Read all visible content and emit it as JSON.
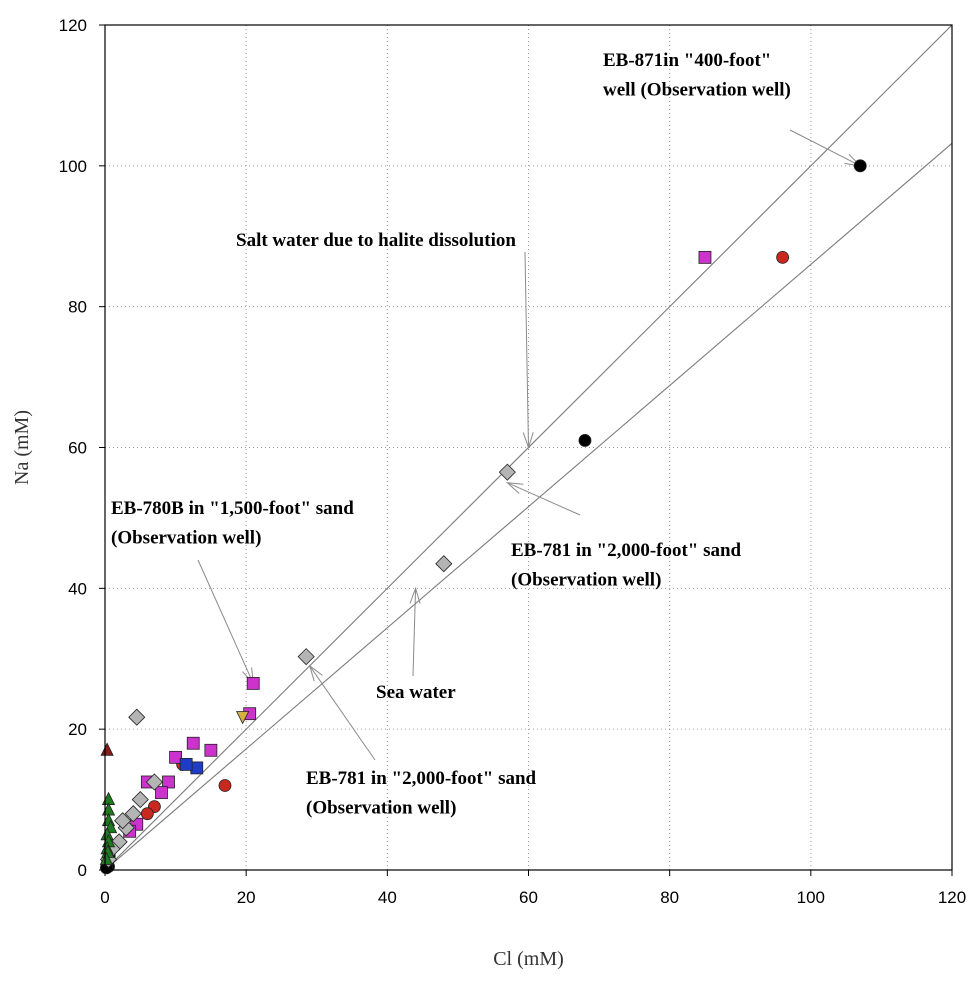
{
  "chart_data": {
    "type": "scatter",
    "title": "",
    "xlabel": "Cl (mM)",
    "ylabel": "Na (mM)",
    "xlim": [
      0,
      120
    ],
    "ylim": [
      0,
      120
    ],
    "xticks": [
      "0",
      "20",
      "40",
      "60",
      "80",
      "100",
      "120"
    ],
    "yticks": [
      "0",
      "20",
      "40",
      "60",
      "80",
      "100",
      "120"
    ],
    "grid": true,
    "legend": "none",
    "colors": {
      "black": "#000000",
      "red": "#c8281e",
      "magenta": "#cc33cc",
      "gray": "#b4b4b4",
      "blue": "#1e3cc8",
      "green": "#1e7a1e",
      "darkred": "#8b1a1a",
      "yellow": "#d4b040"
    },
    "reference_lines": [
      {
        "label": "Salt water due to halite dissolution",
        "slope": 1.0
      },
      {
        "label": "Sea water",
        "slope": 0.86
      }
    ],
    "annotations": [
      {
        "lines": [
          "EB-871in \"400-foot\"",
          "well (Observation well)"
        ],
        "arrow_to": [
          107,
          100
        ]
      },
      {
        "lines": [
          "Salt water due to halite dissolution"
        ],
        "arrow_to": [
          60,
          60
        ]
      },
      {
        "lines": [
          "EB-780B in \"1,500-foot\" sand",
          "(Observation well)"
        ],
        "arrow_to": [
          21,
          26.5
        ]
      },
      {
        "lines": [
          "EB-781 in \"2,000-foot\" sand",
          "(Observation well)"
        ],
        "arrow_to": [
          57,
          55
        ]
      },
      {
        "lines": [
          "Sea water"
        ],
        "arrow_to": [
          44,
          40
        ]
      },
      {
        "lines": [
          "EB-781 in \"2,000-foot\" sand",
          "(Observation well)"
        ],
        "arrow_to": [
          29,
          29
        ]
      }
    ],
    "series": [
      {
        "marker": "circle",
        "color": "black",
        "points": [
          [
            107,
            100
          ],
          [
            68,
            61
          ],
          [
            0.5,
            0.5
          ],
          [
            0.4,
            1.2
          ],
          [
            0.2,
            0.3
          ],
          [
            0.6,
            2.0
          ]
        ]
      },
      {
        "marker": "circle",
        "color": "red",
        "points": [
          [
            96,
            87
          ],
          [
            17,
            12
          ],
          [
            7,
            9
          ],
          [
            11,
            15
          ],
          [
            6,
            8
          ]
        ]
      },
      {
        "marker": "square",
        "color": "magenta",
        "points": [
          [
            85,
            87
          ],
          [
            21,
            26.5
          ],
          [
            20.5,
            22.2
          ],
          [
            15,
            17
          ],
          [
            12.5,
            18
          ],
          [
            10,
            16
          ],
          [
            9,
            12.5
          ],
          [
            8,
            11
          ],
          [
            6,
            12.5
          ],
          [
            4.5,
            6.5
          ],
          [
            3.5,
            5.5
          ]
        ]
      },
      {
        "marker": "diamond",
        "color": "gray",
        "points": [
          [
            57,
            56.5
          ],
          [
            48,
            43.5
          ],
          [
            28.5,
            30.3
          ],
          [
            4.5,
            21.7
          ],
          [
            7,
            12.5
          ],
          [
            5,
            10
          ],
          [
            4,
            8
          ],
          [
            3,
            6
          ],
          [
            2,
            4
          ],
          [
            1,
            3
          ],
          [
            2.5,
            7
          ],
          [
            0.5,
            1.5
          ]
        ]
      },
      {
        "marker": "square",
        "color": "blue",
        "points": [
          [
            13,
            14.5
          ],
          [
            11.5,
            15
          ]
        ]
      },
      {
        "marker": "triangle",
        "color": "green",
        "points": [
          [
            0.5,
            10
          ],
          [
            0.5,
            8.5
          ],
          [
            0.5,
            7
          ],
          [
            0.8,
            6
          ],
          [
            0.3,
            5
          ],
          [
            0.5,
            4
          ],
          [
            0.3,
            3
          ],
          [
            0.4,
            2.5
          ],
          [
            0.2,
            1.5
          ]
        ]
      },
      {
        "marker": "triangle",
        "color": "darkred",
        "points": [
          [
            0.3,
            17
          ]
        ]
      },
      {
        "marker": "triangle-down",
        "color": "yellow",
        "points": [
          [
            19.5,
            21.8
          ]
        ]
      }
    ]
  }
}
